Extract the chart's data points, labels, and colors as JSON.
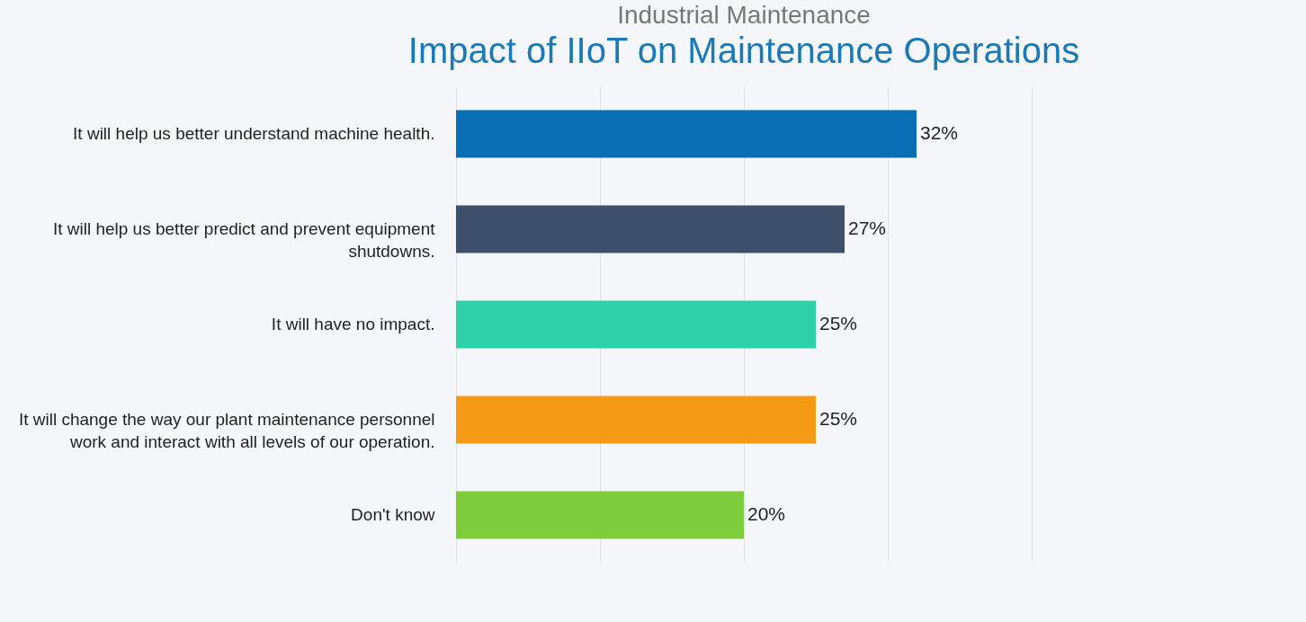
{
  "chart_data": {
    "type": "bar",
    "orientation": "horizontal",
    "subtitle": "Industrial Maintenance",
    "title": "Impact of IIoT on Maintenance Operations",
    "categories": [
      "It will help us better understand machine health.",
      "It will help us better predict and prevent equipment shutdowns.",
      "It will have no impact.",
      "It will change the way our plant maintenance personnel work and interact with all levels of our operation.",
      "Don't know"
    ],
    "values": [
      32,
      27,
      25,
      25,
      20
    ],
    "colors": [
      "#0a6eb4",
      "#3d4f6b",
      "#2ed1a8",
      "#f59a14",
      "#7ccc3c"
    ],
    "value_labels": [
      "32%",
      "27%",
      "25%",
      "25%",
      "20%"
    ],
    "xlim": [
      0,
      40
    ],
    "xticks": [
      {
        "value": 0,
        "label": null
      },
      {
        "value": 10,
        "label": null
      },
      {
        "value": 20,
        "label": null
      },
      {
        "value": 30,
        "label": null
      },
      {
        "value": 40,
        "label": null
      }
    ],
    "tick_labels": "y",
    "grid": "x"
  }
}
